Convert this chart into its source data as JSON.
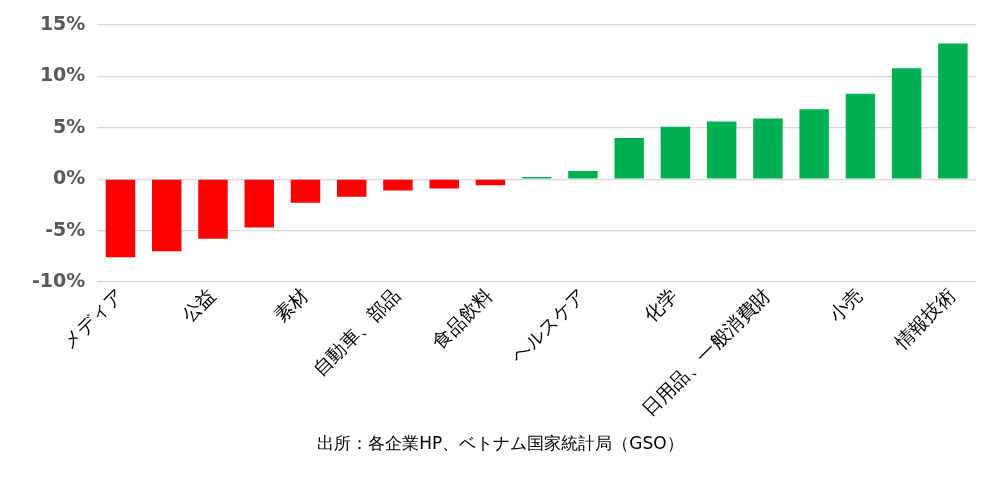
{
  "chart_data": {
    "type": "bar",
    "categories": [
      "メディア",
      null,
      "公益",
      null,
      "素材",
      null,
      "自動車、部品",
      null,
      "食品飲料",
      null,
      "ヘルスケア",
      null,
      "化学",
      null,
      "日用品、一般消費財",
      null,
      "小売",
      null,
      "情報技術"
    ],
    "values": [
      -7.6,
      -7.0,
      -5.8,
      -4.7,
      -2.3,
      -1.7,
      -1.1,
      -0.9,
      -0.6,
      0.2,
      0.8,
      4.0,
      5.1,
      5.6,
      5.9,
      6.8,
      8.3,
      10.8,
      13.2
    ],
    "colors": [
      "#ff0000",
      "#ff0000",
      "#ff0000",
      "#ff0000",
      "#ff0000",
      "#ff0000",
      "#ff0000",
      "#ff0000",
      "#ff0000",
      "#00b050",
      "#00b050",
      "#00b050",
      "#00b050",
      "#00b050",
      "#00b050",
      "#00b050",
      "#00b050",
      "#00b050",
      "#00b050"
    ],
    "ylim": [
      -10,
      15
    ],
    "yticks": [
      {
        "value": -10,
        "label": "-10%"
      },
      {
        "value": -5,
        "label": "-5%"
      },
      {
        "value": 0,
        "label": "0%"
      },
      {
        "value": 5,
        "label": "5%"
      },
      {
        "value": 10,
        "label": "10%"
      },
      {
        "value": 15,
        "label": "15%"
      }
    ],
    "grid": "y",
    "legend": false,
    "annotations": [
      "出所：各企業HP、ベトナム国家統計局（GSO）"
    ]
  }
}
